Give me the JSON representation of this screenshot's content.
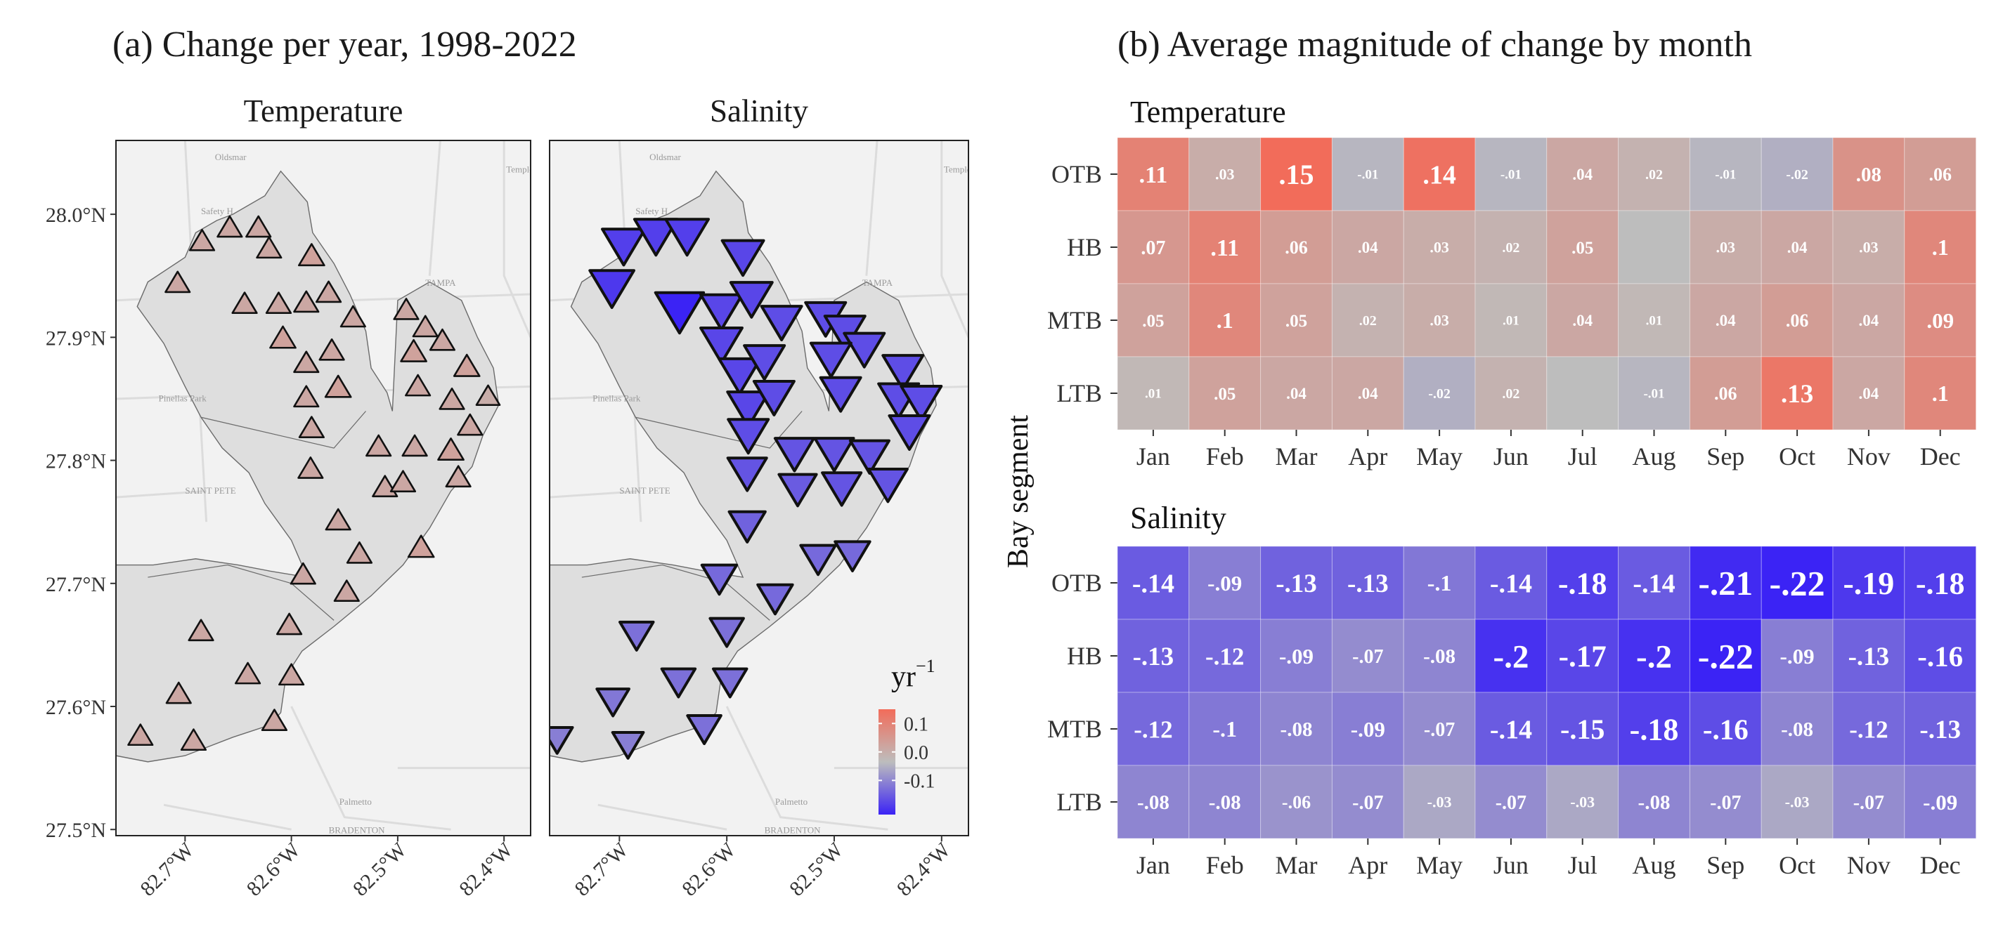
{
  "panel_a": {
    "title": "(a) Change per year, 1998-2022",
    "facets": [
      "Temperature",
      "Salinity"
    ],
    "legend": {
      "title": "yr",
      "title_sup": "−1",
      "ticks": [
        "0.1",
        "0.0",
        "-0.1"
      ]
    },
    "map_labels": [
      "Oldsmar",
      "Temple Te",
      "Safety H",
      "TAMPA",
      "Pinellas Park",
      "SAINT PETE",
      "Palmetto",
      "BRADENTON"
    ]
  },
  "panel_b": {
    "title": "(b) Average magnitude of change by month",
    "ylabel": "Bay segment"
  },
  "chart_data": [
    {
      "type": "scatter",
      "title": "Temperature",
      "xlabel": "",
      "ylabel": "",
      "x_ticks": [
        "82.7°W",
        "82.6°W",
        "82.5°W",
        "82.4°W"
      ],
      "y_ticks": [
        "28.0°N",
        "27.9°N",
        "27.8°N",
        "27.7°N",
        "27.6°N",
        "27.5°N"
      ],
      "xlim": [
        -82.765,
        -82.375
      ],
      "ylim": [
        27.495,
        28.06
      ],
      "color_scale": {
        "low": "#3b23f5",
        "mid": "#bdbdbd",
        "high": "#f26c5a",
        "range": [
          -0.22,
          0.15
        ]
      },
      "points": [
        {
          "lon": -82.707,
          "lat": 27.943,
          "value": 0.04
        },
        {
          "lon": -82.684,
          "lat": 27.977,
          "value": 0.04
        },
        {
          "lon": -82.658,
          "lat": 27.988,
          "value": 0.04
        },
        {
          "lon": -82.631,
          "lat": 27.988,
          "value": 0.04
        },
        {
          "lon": -82.621,
          "lat": 27.971,
          "value": 0.04
        },
        {
          "lon": -82.581,
          "lat": 27.965,
          "value": 0.05
        },
        {
          "lon": -82.644,
          "lat": 27.926,
          "value": 0.04
        },
        {
          "lon": -82.612,
          "lat": 27.926,
          "value": 0.04
        },
        {
          "lon": -82.586,
          "lat": 27.927,
          "value": 0.04
        },
        {
          "lon": -82.565,
          "lat": 27.935,
          "value": 0.04
        },
        {
          "lon": -82.542,
          "lat": 27.915,
          "value": 0.04
        },
        {
          "lon": -82.608,
          "lat": 27.898,
          "value": 0.05
        },
        {
          "lon": -82.586,
          "lat": 27.878,
          "value": 0.04
        },
        {
          "lon": -82.562,
          "lat": 27.888,
          "value": 0.04
        },
        {
          "lon": -82.556,
          "lat": 27.858,
          "value": 0.05
        },
        {
          "lon": -82.586,
          "lat": 27.85,
          "value": 0.04
        },
        {
          "lon": -82.581,
          "lat": 27.825,
          "value": 0.04
        },
        {
          "lon": -82.492,
          "lat": 27.921,
          "value": 0.04
        },
        {
          "lon": -82.474,
          "lat": 27.907,
          "value": 0.04
        },
        {
          "lon": -82.458,
          "lat": 27.896,
          "value": 0.04
        },
        {
          "lon": -82.485,
          "lat": 27.887,
          "value": 0.05
        },
        {
          "lon": -82.435,
          "lat": 27.875,
          "value": 0.05
        },
        {
          "lon": -82.481,
          "lat": 27.859,
          "value": 0.04
        },
        {
          "lon": -82.449,
          "lat": 27.848,
          "value": 0.04
        },
        {
          "lon": -82.415,
          "lat": 27.851,
          "value": 0.03
        },
        {
          "lon": -82.432,
          "lat": 27.827,
          "value": 0.04
        },
        {
          "lon": -82.518,
          "lat": 27.81,
          "value": 0.04
        },
        {
          "lon": -82.484,
          "lat": 27.81,
          "value": 0.04
        },
        {
          "lon": -82.45,
          "lat": 27.807,
          "value": 0.05
        },
        {
          "lon": -82.582,
          "lat": 27.792,
          "value": 0.04
        },
        {
          "lon": -82.512,
          "lat": 27.777,
          "value": 0.04
        },
        {
          "lon": -82.495,
          "lat": 27.781,
          "value": 0.04
        },
        {
          "lon": -82.443,
          "lat": 27.785,
          "value": 0.04
        },
        {
          "lon": -82.556,
          "lat": 27.75,
          "value": 0.04
        },
        {
          "lon": -82.536,
          "lat": 27.723,
          "value": 0.04
        },
        {
          "lon": -82.478,
          "lat": 27.728,
          "value": 0.05
        },
        {
          "lon": -82.589,
          "lat": 27.706,
          "value": 0.04
        },
        {
          "lon": -82.548,
          "lat": 27.692,
          "value": 0.04
        },
        {
          "lon": -82.685,
          "lat": 27.66,
          "value": 0.04
        },
        {
          "lon": -82.602,
          "lat": 27.665,
          "value": 0.04
        },
        {
          "lon": -82.641,
          "lat": 27.625,
          "value": 0.04
        },
        {
          "lon": -82.6,
          "lat": 27.624,
          "value": 0.04
        },
        {
          "lon": -82.706,
          "lat": 27.609,
          "value": 0.04
        },
        {
          "lon": -82.616,
          "lat": 27.587,
          "value": 0.04
        },
        {
          "lon": -82.742,
          "lat": 27.575,
          "value": 0.04
        },
        {
          "lon": -82.692,
          "lat": 27.571,
          "value": 0.04
        }
      ]
    },
    {
      "type": "scatter",
      "title": "Salinity",
      "xlabel": "",
      "ylabel": "",
      "x_ticks": [
        "82.7°W",
        "82.6°W",
        "82.5°W",
        "82.4°W"
      ],
      "y_ticks": [
        "28.0°N",
        "27.9°N",
        "27.8°N",
        "27.7°N",
        "27.6°N",
        "27.5°N"
      ],
      "xlim": [
        -82.765,
        -82.375
      ],
      "ylim": [
        27.495,
        28.06
      ],
      "color_scale": {
        "low": "#3b23f5",
        "mid": "#bdbdbd",
        "high": "#f26c5a",
        "range": [
          -0.22,
          0.15
        ]
      },
      "points": [
        {
          "lon": -82.707,
          "lat": 27.943,
          "value": -0.19
        },
        {
          "lon": -82.696,
          "lat": 27.977,
          "value": -0.18
        },
        {
          "lon": -82.666,
          "lat": 27.985,
          "value": -0.18
        },
        {
          "lon": -82.637,
          "lat": 27.985,
          "value": -0.18
        },
        {
          "lon": -82.585,
          "lat": 27.968,
          "value": -0.17
        },
        {
          "lon": -82.644,
          "lat": 27.924,
          "value": -0.22
        },
        {
          "lon": -82.605,
          "lat": 27.924,
          "value": -0.17
        },
        {
          "lon": -82.577,
          "lat": 27.934,
          "value": -0.17
        },
        {
          "lon": -82.549,
          "lat": 27.915,
          "value": -0.16
        },
        {
          "lon": -82.605,
          "lat": 27.897,
          "value": -0.17
        },
        {
          "lon": -82.588,
          "lat": 27.872,
          "value": -0.17
        },
        {
          "lon": -82.565,
          "lat": 27.883,
          "value": -0.16
        },
        {
          "lon": -82.58,
          "lat": 27.845,
          "value": -0.17
        },
        {
          "lon": -82.556,
          "lat": 27.854,
          "value": -0.16
        },
        {
          "lon": -82.58,
          "lat": 27.823,
          "value": -0.16
        },
        {
          "lon": -82.508,
          "lat": 27.918,
          "value": -0.16
        },
        {
          "lon": -82.49,
          "lat": 27.907,
          "value": -0.16
        },
        {
          "lon": -82.472,
          "lat": 27.893,
          "value": -0.16
        },
        {
          "lon": -82.503,
          "lat": 27.885,
          "value": -0.16
        },
        {
          "lon": -82.436,
          "lat": 27.875,
          "value": -0.16
        },
        {
          "lon": -82.494,
          "lat": 27.857,
          "value": -0.16
        },
        {
          "lon": -82.44,
          "lat": 27.852,
          "value": -0.16
        },
        {
          "lon": -82.419,
          "lat": 27.85,
          "value": -0.16
        },
        {
          "lon": -82.43,
          "lat": 27.826,
          "value": -0.16
        },
        {
          "lon": -82.537,
          "lat": 27.808,
          "value": -0.15
        },
        {
          "lon": -82.5,
          "lat": 27.808,
          "value": -0.15
        },
        {
          "lon": -82.467,
          "lat": 27.806,
          "value": -0.15
        },
        {
          "lon": -82.581,
          "lat": 27.792,
          "value": -0.15
        },
        {
          "lon": -82.534,
          "lat": 27.779,
          "value": -0.14
        },
        {
          "lon": -82.493,
          "lat": 27.78,
          "value": -0.15
        },
        {
          "lon": -82.45,
          "lat": 27.783,
          "value": -0.15
        },
        {
          "lon": -82.581,
          "lat": 27.749,
          "value": -0.13
        },
        {
          "lon": -82.515,
          "lat": 27.722,
          "value": -0.12
        },
        {
          "lon": -82.483,
          "lat": 27.725,
          "value": -0.12
        },
        {
          "lon": -82.607,
          "lat": 27.706,
          "value": -0.12
        },
        {
          "lon": -82.555,
          "lat": 27.69,
          "value": -0.12
        },
        {
          "lon": -82.684,
          "lat": 27.66,
          "value": -0.11
        },
        {
          "lon": -82.6,
          "lat": 27.663,
          "value": -0.11
        },
        {
          "lon": -82.645,
          "lat": 27.622,
          "value": -0.11
        },
        {
          "lon": -82.597,
          "lat": 27.622,
          "value": -0.11
        },
        {
          "lon": -82.706,
          "lat": 27.606,
          "value": -0.1
        },
        {
          "lon": -82.621,
          "lat": 27.584,
          "value": -0.11
        },
        {
          "lon": -82.758,
          "lat": 27.575,
          "value": -0.09
        },
        {
          "lon": -82.692,
          "lat": 27.571,
          "value": -0.09
        }
      ]
    },
    {
      "type": "heatmap",
      "title": "Temperature",
      "xlabel": "",
      "ylabel": "Bay segment",
      "categories": [
        "Jan",
        "Feb",
        "Mar",
        "Apr",
        "May",
        "Jun",
        "Jul",
        "Aug",
        "Sep",
        "Oct",
        "Nov",
        "Dec"
      ],
      "rows": [
        "OTB",
        "HB",
        "MTB",
        "LTB"
      ],
      "labels": [
        [
          ".11",
          ".03",
          ".15",
          "-.01",
          ".14",
          "-.01",
          ".04",
          ".02",
          "-.01",
          "-.02",
          ".08",
          ".06"
        ],
        [
          ".07",
          ".11",
          ".06",
          ".04",
          ".03",
          ".02",
          ".05",
          "",
          ".03",
          ".04",
          ".03",
          ".1"
        ],
        [
          ".05",
          ".1",
          ".05",
          ".02",
          ".03",
          ".01",
          ".04",
          ".01",
          ".04",
          ".06",
          ".04",
          ".09"
        ],
        [
          ".01",
          ".05",
          ".04",
          ".04",
          "-.02",
          ".02",
          "",
          "-.01",
          ".06",
          ".13",
          ".04",
          ".1"
        ]
      ],
      "values": [
        [
          0.11,
          0.03,
          0.15,
          -0.01,
          0.14,
          -0.01,
          0.04,
          0.02,
          -0.01,
          -0.02,
          0.08,
          0.06
        ],
        [
          0.07,
          0.11,
          0.06,
          0.04,
          0.03,
          0.02,
          0.05,
          0.0,
          0.03,
          0.04,
          0.03,
          0.1
        ],
        [
          0.05,
          0.1,
          0.05,
          0.02,
          0.03,
          0.01,
          0.04,
          0.01,
          0.04,
          0.06,
          0.04,
          0.09
        ],
        [
          0.01,
          0.05,
          0.04,
          0.04,
          -0.02,
          0.02,
          0.0,
          -0.01,
          0.06,
          0.13,
          0.04,
          0.1
        ]
      ]
    },
    {
      "type": "heatmap",
      "title": "Salinity",
      "xlabel": "",
      "ylabel": "Bay segment",
      "categories": [
        "Jan",
        "Feb",
        "Mar",
        "Apr",
        "May",
        "Jun",
        "Jul",
        "Aug",
        "Sep",
        "Oct",
        "Nov",
        "Dec"
      ],
      "rows": [
        "OTB",
        "HB",
        "MTB",
        "LTB"
      ],
      "labels": [
        [
          "-.14",
          "-.09",
          "-.13",
          "-.13",
          "-.1",
          "-.14",
          "-.18",
          "-.14",
          "-.21",
          "-.22",
          "-.19",
          "-.18"
        ],
        [
          "-.13",
          "-.12",
          "-.09",
          "-.07",
          "-.08",
          "-.2",
          "-.17",
          "-.2",
          "-.22",
          "-.09",
          "-.13",
          "-.16"
        ],
        [
          "-.12",
          "-.1",
          "-.08",
          "-.09",
          "-.07",
          "-.14",
          "-.15",
          "-.18",
          "-.16",
          "-.08",
          "-.12",
          "-.13"
        ],
        [
          "-.08",
          "-.08",
          "-.06",
          "-.07",
          "-.03",
          "-.07",
          "-.03",
          "-.08",
          "-.07",
          "-.03",
          "-.07",
          "-.09"
        ]
      ],
      "values": [
        [
          -0.14,
          -0.09,
          -0.13,
          -0.13,
          -0.1,
          -0.14,
          -0.18,
          -0.14,
          -0.21,
          -0.22,
          -0.19,
          -0.18
        ],
        [
          -0.13,
          -0.12,
          -0.09,
          -0.07,
          -0.08,
          -0.2,
          -0.17,
          -0.2,
          -0.22,
          -0.09,
          -0.13,
          -0.16
        ],
        [
          -0.12,
          -0.1,
          -0.08,
          -0.09,
          -0.07,
          -0.14,
          -0.15,
          -0.18,
          -0.16,
          -0.08,
          -0.12,
          -0.13
        ],
        [
          -0.08,
          -0.08,
          -0.06,
          -0.07,
          -0.03,
          -0.07,
          -0.03,
          -0.08,
          -0.07,
          -0.03,
          -0.07,
          -0.09
        ]
      ]
    }
  ]
}
